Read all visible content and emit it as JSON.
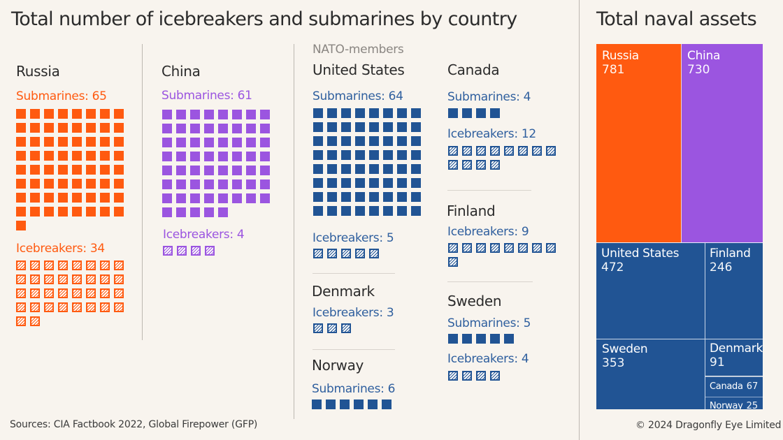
{
  "header": {
    "title": "Total number of icebreakers and submarines by country",
    "treemap_title": "Total naval assets",
    "nato_label": "NATO-members"
  },
  "footer": {
    "sources": "Sources: CIA Factbook 2022, Global Firepower (GFP)",
    "copyright": "© 2024 Dragonfly Eye Limited"
  },
  "colors": {
    "russia": "#ff5a10",
    "china": "#9b55e0",
    "nato": "#215494",
    "background": "#f8f4ee"
  },
  "chart_data": [
    {
      "type": "waffle",
      "title": "Total number of icebreakers and submarines by country",
      "unit": "one square = one vessel",
      "legend": {
        "solid": "Submarines",
        "hatched": "Icebreakers"
      },
      "countries": [
        {
          "name": "Russia",
          "group": "russia",
          "submarines": 65,
          "icebreakers": 34,
          "sub_label": "Submarines: 65",
          "ice_label": "Icebreakers: 34"
        },
        {
          "name": "China",
          "group": "china",
          "submarines": 61,
          "icebreakers": 4,
          "sub_label": "Submarines: 61",
          "ice_label": "Icebreakers: 4"
        },
        {
          "name": "United States",
          "group": "nato",
          "submarines": 64,
          "icebreakers": 5,
          "sub_label": "Submarines: 64",
          "ice_label": "Icebreakers: 5"
        },
        {
          "name": "Denmark",
          "group": "nato",
          "submarines": null,
          "icebreakers": 3,
          "ice_label": "Icebreakers: 3"
        },
        {
          "name": "Norway",
          "group": "nato",
          "submarines": 6,
          "icebreakers": null,
          "sub_label": "Submarines: 6"
        },
        {
          "name": "Canada",
          "group": "nato",
          "submarines": 4,
          "icebreakers": 12,
          "sub_label": "Submarines: 4",
          "ice_label": "Icebreakers: 12"
        },
        {
          "name": "Finland",
          "group": "nato",
          "submarines": null,
          "icebreakers": 9,
          "ice_label": "Icebreakers: 9"
        },
        {
          "name": "Sweden",
          "group": "nato",
          "submarines": 5,
          "icebreakers": 4,
          "sub_label": "Submarines: 5",
          "ice_label": "Icebreakers: 4"
        }
      ]
    },
    {
      "type": "treemap",
      "title": "Total naval assets",
      "items": [
        {
          "name": "Russia",
          "value": 781,
          "group": "russia"
        },
        {
          "name": "China",
          "value": 730,
          "group": "china"
        },
        {
          "name": "United States",
          "value": 472,
          "group": "nato"
        },
        {
          "name": "Finland",
          "value": 246,
          "group": "nato"
        },
        {
          "name": "Sweden",
          "value": 353,
          "group": "nato"
        },
        {
          "name": "Denmark",
          "value": 91,
          "group": "nato"
        },
        {
          "name": "Canada",
          "value": 67,
          "group": "nato"
        },
        {
          "name": "Norway",
          "value": 25,
          "group": "nato"
        }
      ]
    }
  ]
}
